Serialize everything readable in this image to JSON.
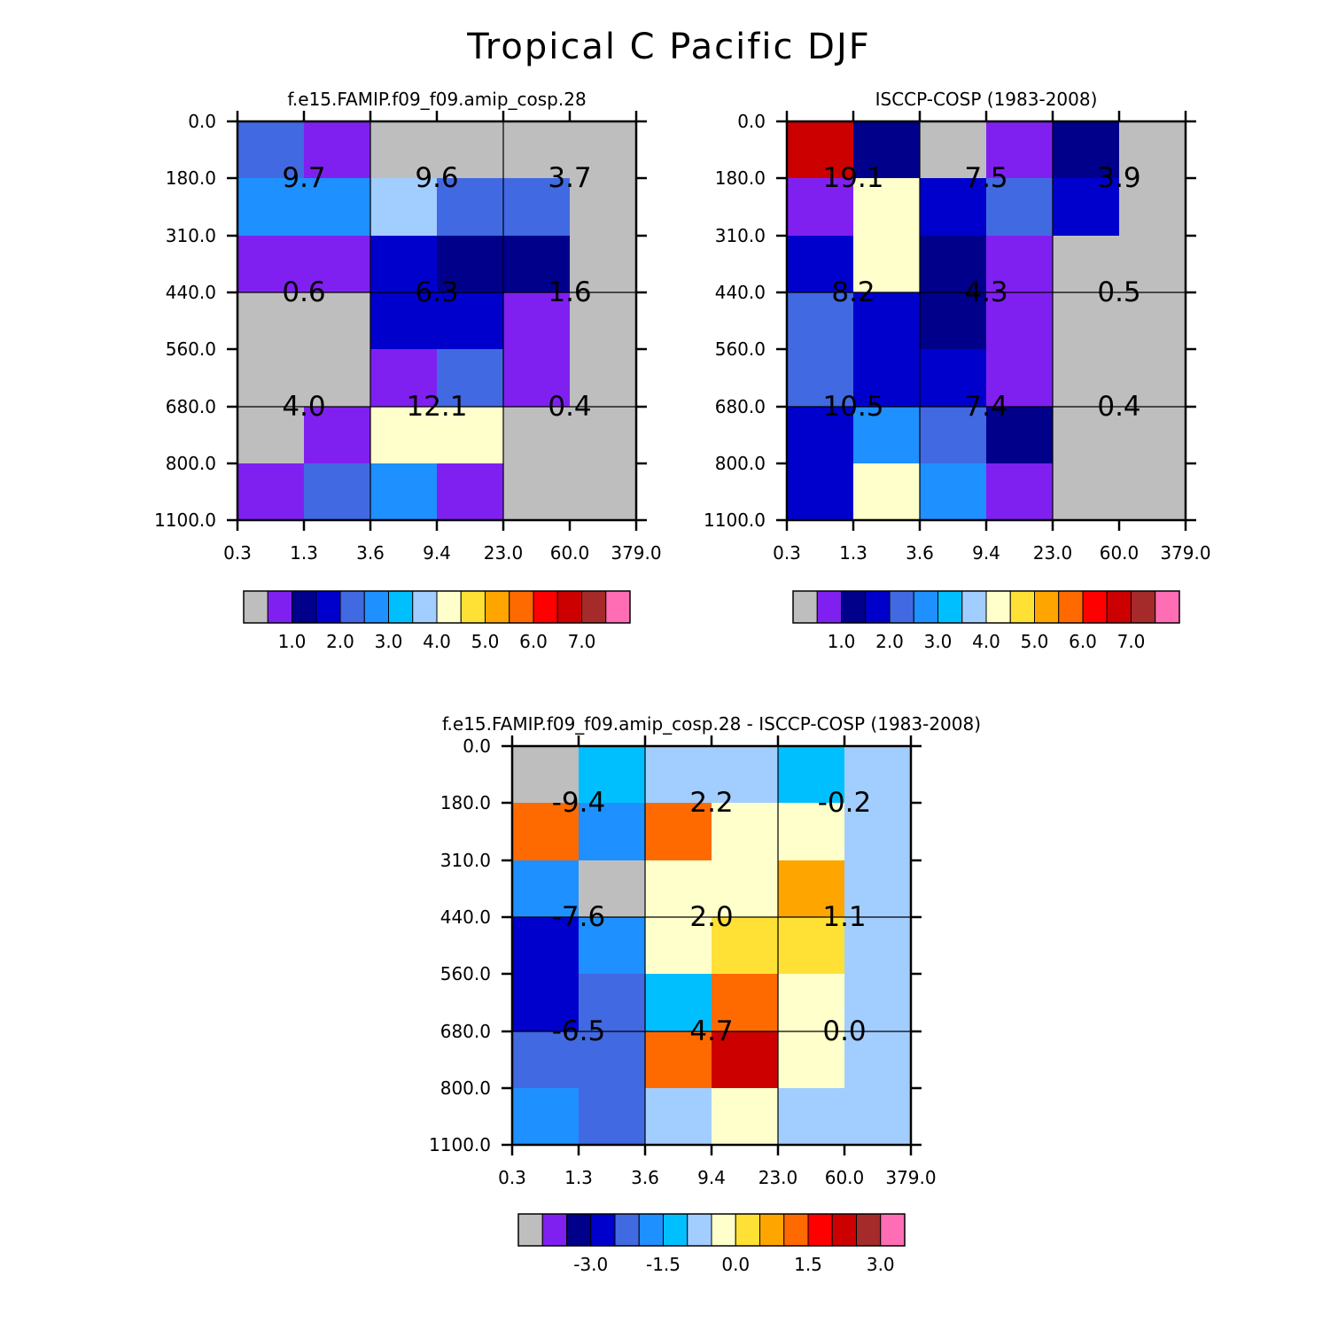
{
  "title": "Tropical C Pacific DJF",
  "x_tick_labels": [
    "0.3",
    "1.3",
    "3.6",
    "9.4",
    "23.0",
    "60.0",
    "379.0"
  ],
  "y_tick_labels": [
    "0.0",
    "180.0",
    "310.0",
    "440.0",
    "560.0",
    "680.0",
    "800.0",
    "1100.0"
  ],
  "colors": {
    "palette": [
      "#bebebe",
      "#8020f0",
      "#00008b",
      "#0000cd",
      "#4169e1",
      "#1e90ff",
      "#00bfff",
      "#a2cdff",
      "#ffffcc",
      "#ffe135",
      "#ffa500",
      "#ff6a00",
      "#ff0000",
      "#cd0000",
      "#a52a2a",
      "#ff6eb4"
    ]
  },
  "chart_data": [
    {
      "type": "heatmap",
      "title": "f.e15.FAMIP.f09_f09.amip_cosp.28",
      "x_edges": [
        "0.3",
        "1.3",
        "3.6",
        "9.4",
        "23.0",
        "60.0",
        "379.0"
      ],
      "y_edges": [
        "0.0",
        "180.0",
        "310.0",
        "440.0",
        "560.0",
        "680.0",
        "800.0",
        "1100.0"
      ],
      "cell_color_index": [
        [
          4,
          1,
          0,
          0,
          0,
          0
        ],
        [
          5,
          5,
          7,
          4,
          4,
          0
        ],
        [
          1,
          1,
          3,
          2,
          2,
          0
        ],
        [
          0,
          0,
          3,
          3,
          1,
          0
        ],
        [
          0,
          0,
          1,
          4,
          1,
          0
        ],
        [
          0,
          1,
          8,
          8,
          0,
          0
        ],
        [
          1,
          4,
          5,
          1,
          0,
          0
        ]
      ],
      "block_totals": [
        [
          "9.7",
          "9.6",
          "3.7"
        ],
        [
          "0.6",
          "6.3",
          "1.6"
        ],
        [
          "4.0",
          "12.1",
          "0.4"
        ]
      ],
      "colorbar_labels": [
        "1.0",
        "2.0",
        "3.0",
        "4.0",
        "5.0",
        "6.0",
        "7.0"
      ]
    },
    {
      "type": "heatmap",
      "title": "ISCCP-COSP (1983-2008)",
      "x_edges": [
        "0.3",
        "1.3",
        "3.6",
        "9.4",
        "23.0",
        "60.0",
        "379.0"
      ],
      "y_edges": [
        "0.0",
        "180.0",
        "310.0",
        "440.0",
        "560.0",
        "680.0",
        "800.0",
        "1100.0"
      ],
      "cell_color_index": [
        [
          13,
          2,
          0,
          1,
          2,
          0
        ],
        [
          1,
          8,
          3,
          4,
          3,
          0
        ],
        [
          3,
          8,
          2,
          1,
          0,
          0
        ],
        [
          4,
          3,
          2,
          1,
          0,
          0
        ],
        [
          4,
          3,
          3,
          1,
          0,
          0
        ],
        [
          3,
          5,
          4,
          2,
          0,
          0
        ],
        [
          3,
          8,
          5,
          1,
          0,
          0
        ]
      ],
      "block_totals": [
        [
          "19.1",
          "7.5",
          "3.9"
        ],
        [
          "8.2",
          "4.3",
          "0.5"
        ],
        [
          "10.5",
          "7.4",
          "0.4"
        ]
      ],
      "colorbar_labels": [
        "1.0",
        "2.0",
        "3.0",
        "4.0",
        "5.0",
        "6.0",
        "7.0"
      ]
    },
    {
      "type": "heatmap",
      "title": "f.e15.FAMIP.f09_f09.amip_cosp.28 - ISCCP-COSP (1983-2008)",
      "x_edges": [
        "0.3",
        "1.3",
        "3.6",
        "9.4",
        "23.0",
        "60.0",
        "379.0"
      ],
      "y_edges": [
        "0.0",
        "180.0",
        "310.0",
        "440.0",
        "560.0",
        "680.0",
        "800.0",
        "1100.0"
      ],
      "cell_color_index": [
        [
          0,
          6,
          7,
          7,
          6,
          7
        ],
        [
          11,
          5,
          11,
          8,
          8,
          7
        ],
        [
          5,
          0,
          8,
          8,
          10,
          7
        ],
        [
          3,
          5,
          8,
          9,
          9,
          7
        ],
        [
          3,
          4,
          6,
          11,
          8,
          7
        ],
        [
          4,
          4,
          11,
          13,
          8,
          7
        ],
        [
          5,
          4,
          7,
          8,
          7,
          7
        ]
      ],
      "block_totals": [
        [
          "-9.4",
          "2.2",
          "-0.2"
        ],
        [
          "-7.6",
          "2.0",
          "1.1"
        ],
        [
          "-6.5",
          "4.7",
          "0.0"
        ]
      ],
      "colorbar_labels": [
        "-3.0",
        "-1.5",
        "0.0",
        "1.5",
        "3.0"
      ]
    }
  ]
}
